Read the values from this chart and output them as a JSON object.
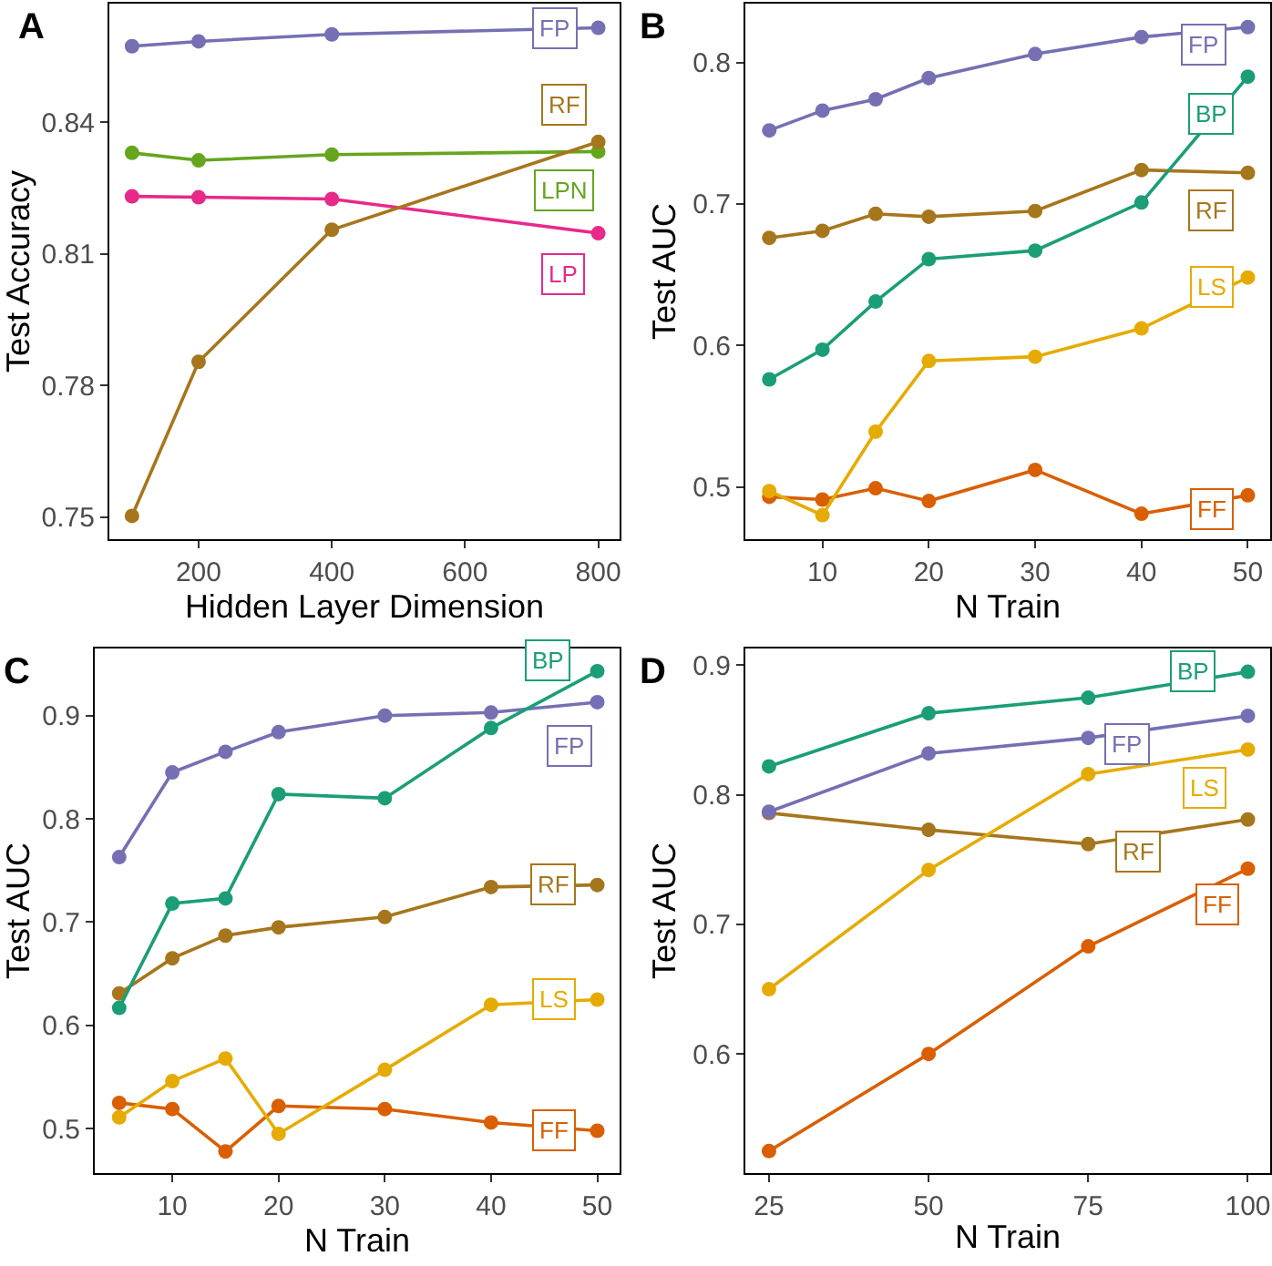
{
  "chart_data": [
    {
      "type": "line",
      "title": "A",
      "xlabel": "Hidden Layer Dimension",
      "ylabel": "Test Accuracy",
      "x": [
        100,
        200,
        400,
        800
      ],
      "xlim": [
        66,
        832
      ],
      "xticks": [
        200,
        400,
        600,
        800
      ],
      "ylim": [
        0.745,
        0.867
      ],
      "yticks": [
        0.75,
        0.78,
        0.81,
        0.84
      ],
      "marker": "circle",
      "series": [
        {
          "name": "FP",
          "color": "#7570b3",
          "values": [
            0.8573,
            0.8584,
            0.86,
            0.8615
          ]
        },
        {
          "name": "RF",
          "color": "#a6761d",
          "values": [
            0.7503,
            0.7854,
            0.8155,
            0.8355
          ]
        },
        {
          "name": "LPN",
          "color": "#66a61e",
          "values": [
            0.833,
            0.8313,
            0.8326,
            0.8333
          ]
        },
        {
          "name": "LP",
          "color": "#e7298a",
          "values": [
            0.8231,
            0.8229,
            0.8225,
            0.8147
          ]
        }
      ]
    },
    {
      "type": "line",
      "title": "B",
      "xlabel": "N Train",
      "ylabel": "Test AUC",
      "x": [
        5,
        10,
        15,
        20,
        30,
        40,
        50
      ],
      "xlim": [
        2.75,
        52.1
      ],
      "xticks": [
        10,
        20,
        30,
        40,
        50
      ],
      "ylim": [
        0.463,
        0.8416
      ],
      "yticks": [
        0.5,
        0.6,
        0.7,
        0.8
      ],
      "marker": "circle",
      "series": [
        {
          "name": "FP",
          "color": "#7570b3",
          "values": [
            0.752,
            0.766,
            0.774,
            0.789,
            0.806,
            0.818,
            0.825
          ]
        },
        {
          "name": "BP",
          "color": "#1b9e77",
          "values": [
            0.576,
            0.597,
            0.631,
            0.661,
            0.667,
            0.701,
            0.79
          ]
        },
        {
          "name": "RF",
          "color": "#a6761d",
          "values": [
            0.676,
            0.681,
            0.693,
            0.691,
            0.695,
            0.724,
            0.722
          ]
        },
        {
          "name": "LS",
          "color": "#e6ab02",
          "values": [
            0.497,
            0.48,
            0.539,
            0.589,
            0.592,
            0.612,
            0.648
          ]
        },
        {
          "name": "FF",
          "color": "#d95f02",
          "values": [
            0.493,
            0.491,
            0.499,
            0.49,
            0.512,
            0.481,
            0.494
          ]
        }
      ]
    },
    {
      "type": "line",
      "title": "C",
      "xlabel": "N Train",
      "ylabel": "Test AUC",
      "x": [
        5,
        10,
        15,
        20,
        30,
        40,
        50
      ],
      "xlim": [
        2.7,
        52.1
      ],
      "xticks": [
        10,
        20,
        30,
        40,
        50
      ],
      "ylim": [
        0.457,
        0.965
      ],
      "yticks": [
        0.5,
        0.6,
        0.7,
        0.8,
        0.9
      ],
      "marker": "circle",
      "series": [
        {
          "name": "BP",
          "color": "#1b9e77",
          "values": [
            0.617,
            0.718,
            0.723,
            0.824,
            0.82,
            0.888,
            0.943
          ]
        },
        {
          "name": "FP",
          "color": "#7570b3",
          "values": [
            0.763,
            0.845,
            0.865,
            0.884,
            0.9,
            0.903,
            0.913
          ]
        },
        {
          "name": "RF",
          "color": "#a6761d",
          "values": [
            0.631,
            0.665,
            0.687,
            0.695,
            0.705,
            0.734,
            0.736
          ]
        },
        {
          "name": "LS",
          "color": "#e6ab02",
          "values": [
            0.511,
            0.546,
            0.568,
            0.495,
            0.557,
            0.62,
            0.625
          ]
        },
        {
          "name": "FF",
          "color": "#d95f02",
          "values": [
            0.525,
            0.519,
            0.478,
            0.522,
            0.519,
            0.506,
            0.498
          ]
        }
      ]
    },
    {
      "type": "line",
      "title": "D",
      "xlabel": "N Train",
      "ylabel": "Test AUC",
      "x": [
        25,
        50,
        75,
        100
      ],
      "xlim": [
        21.3,
        103.5
      ],
      "xticks": [
        25,
        50,
        75,
        100
      ],
      "ylim": [
        0.508,
        0.913
      ],
      "yticks": [
        0.6,
        0.7,
        0.8,
        0.9
      ],
      "marker": "circle",
      "series": [
        {
          "name": "BP",
          "color": "#1b9e77",
          "values": [
            0.822,
            0.863,
            0.875,
            0.895
          ]
        },
        {
          "name": "FP",
          "color": "#7570b3",
          "values": [
            0.787,
            0.832,
            0.844,
            0.861
          ]
        },
        {
          "name": "LS",
          "color": "#e6ab02",
          "values": [
            0.65,
            0.742,
            0.816,
            0.835
          ]
        },
        {
          "name": "RF",
          "color": "#a6761d",
          "values": [
            0.786,
            0.773,
            0.762,
            0.781
          ]
        },
        {
          "name": "FF",
          "color": "#d95f02",
          "values": [
            0.525,
            0.6,
            0.683,
            0.743
          ]
        }
      ]
    }
  ]
}
